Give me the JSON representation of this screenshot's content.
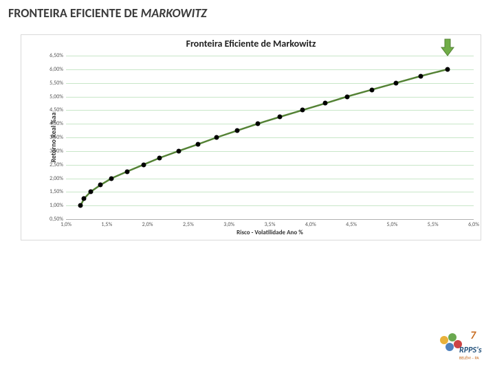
{
  "page": {
    "title_plain": "FRONTEIRA EFICIENTE DE ",
    "title_italic": "MARKOWITZ"
  },
  "chart": {
    "title": "Fronteira Eficiente de Markowitz",
    "type": "scatter-line",
    "ylabel": "Retorno Real %aa",
    "xlabel": "Risco - Volatilidade Ano %",
    "xlim": [
      1.0,
      6.0
    ],
    "ylim": [
      0.5,
      6.5
    ],
    "yticks_vals": [
      0.5,
      1.0,
      1.5,
      2.0,
      2.5,
      3.0,
      3.5,
      4.0,
      4.5,
      5.0,
      5.5,
      6.0,
      6.5
    ],
    "yticks_labels": [
      "0,50%",
      "1,00%",
      "1,50%",
      "2,00%",
      "2,50%",
      "3,00%",
      "3,50%",
      "4,00%",
      "4,50%",
      "5,00%",
      "5,50%",
      "6,00%",
      "6,50%"
    ],
    "xticks_vals": [
      1.0,
      1.5,
      2.0,
      2.5,
      3.0,
      3.5,
      4.0,
      4.5,
      5.0,
      5.5,
      6.0
    ],
    "xticks_labels": [
      "1,0%",
      "1,5%",
      "2,0%",
      "2,5%",
      "3,0%",
      "3,5%",
      "4,0%",
      "4,5%",
      "5,0%",
      "5,5%",
      "6,0%"
    ],
    "grid_color": "#c7e6c7",
    "axis_line_color": "#b0b0b0",
    "background_color": "#ffffff",
    "title_fontsize": 14,
    "label_fontsize": 10,
    "tick_fontsize": 8,
    "line_color": "#548235",
    "line_width": 2.5,
    "marker_color": "#000000",
    "marker_size": 7,
    "data": [
      {
        "x": 1.18,
        "y": 1.0
      },
      {
        "x": 1.22,
        "y": 1.25
      },
      {
        "x": 1.3,
        "y": 1.5
      },
      {
        "x": 1.42,
        "y": 1.75
      },
      {
        "x": 1.56,
        "y": 2.0
      },
      {
        "x": 1.75,
        "y": 2.25
      },
      {
        "x": 1.95,
        "y": 2.5
      },
      {
        "x": 2.15,
        "y": 2.75
      },
      {
        "x": 2.38,
        "y": 3.0
      },
      {
        "x": 2.62,
        "y": 3.25
      },
      {
        "x": 2.85,
        "y": 3.5
      },
      {
        "x": 3.1,
        "y": 3.75
      },
      {
        "x": 3.35,
        "y": 4.0
      },
      {
        "x": 3.62,
        "y": 4.25
      },
      {
        "x": 3.9,
        "y": 4.5
      },
      {
        "x": 4.18,
        "y": 4.75
      },
      {
        "x": 4.45,
        "y": 5.0
      },
      {
        "x": 4.75,
        "y": 5.25
      },
      {
        "x": 5.05,
        "y": 5.5
      },
      {
        "x": 5.35,
        "y": 5.75
      },
      {
        "x": 5.68,
        "y": 6.0
      }
    ],
    "arrow": {
      "x": 5.68,
      "y_top": 6.85,
      "fill": "#70ad47",
      "stroke": "#548235"
    }
  },
  "footer": {
    "line1": "7º",
    "line2": "RPPS's",
    "line3": "BELÉM – PA"
  }
}
